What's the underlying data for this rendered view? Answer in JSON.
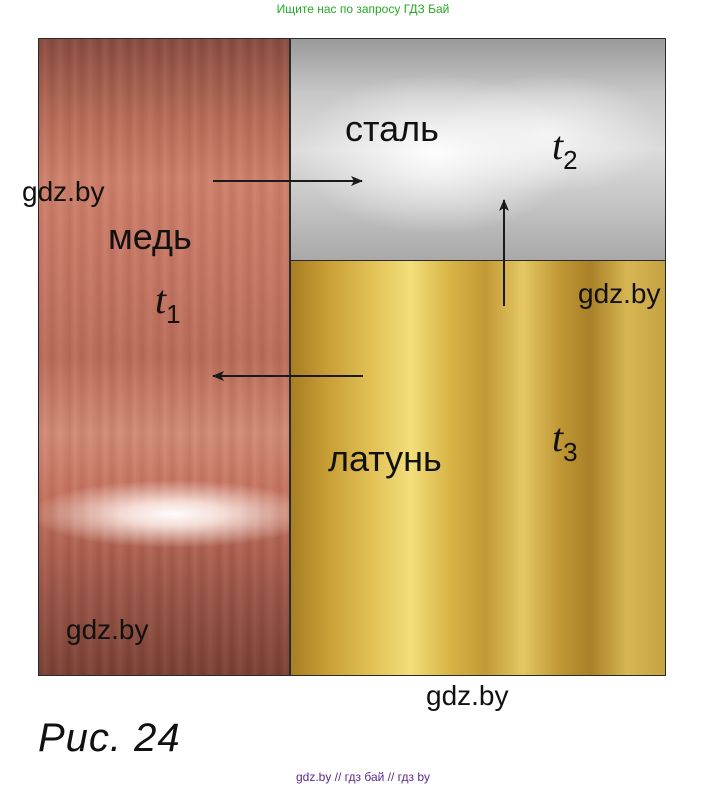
{
  "banner_top": {
    "text": "Ищите нас по запросу ГДЗ Бай",
    "color": "#22aa22"
  },
  "blocks": {
    "copper": {
      "material": "медь",
      "temp_symbol": "t",
      "temp_index": "1"
    },
    "steel": {
      "material": "сталь",
      "temp_symbol": "t",
      "temp_index": "2"
    },
    "brass": {
      "material": "латунь",
      "temp_symbol": "t",
      "temp_index": "3"
    }
  },
  "watermarks": [
    "gdz.by",
    "gdz.by",
    "gdz.by",
    "gdz.by"
  ],
  "arrows": [
    {
      "from": "copper",
      "to": "steel"
    },
    {
      "from": "brass",
      "to": "copper"
    },
    {
      "from": "brass",
      "to": "steel"
    }
  ],
  "caption": "Рис. 24",
  "banner_bottom": {
    "text": "gdz.by // гдз бай // гдз by",
    "color": "#5a2a8a"
  }
}
